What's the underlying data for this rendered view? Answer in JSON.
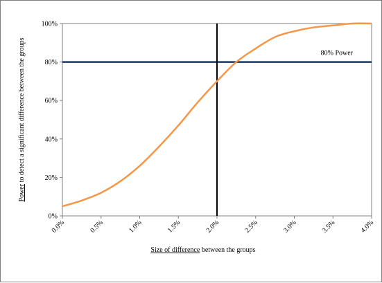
{
  "chart_data": {
    "type": "line",
    "title": "",
    "xlabel_underlined": "Size of difference",
    "xlabel_rest": " between the groups",
    "ylabel_underlined": "Power",
    "ylabel_rest": " to detect a significant difference between the groups",
    "xlim": [
      0,
      4
    ],
    "ylim": [
      0,
      1
    ],
    "x_ticks": [
      "0.0%",
      "0.5%",
      "1.0%",
      "1.5%",
      "2.0%",
      "2.5%",
      "3.0%",
      "3.5%",
      "4.0%"
    ],
    "y_ticks": [
      "0%",
      "20%",
      "40%",
      "60%",
      "80%",
      "100%"
    ],
    "grid": false,
    "series": [
      {
        "color": "#f79646",
        "x": [
          0.0,
          0.25,
          0.5,
          0.75,
          1.0,
          1.25,
          1.5,
          1.75,
          2.0,
          2.25,
          2.5,
          2.75,
          3.0,
          3.25,
          3.5,
          3.75,
          4.0
        ],
        "y": [
          0.05,
          0.08,
          0.12,
          0.18,
          0.26,
          0.36,
          0.47,
          0.59,
          0.7,
          0.8,
          0.87,
          0.93,
          0.96,
          0.98,
          0.99,
          1.0,
          1.0
        ]
      }
    ],
    "reference_lines": {
      "horizontal": {
        "y": 0.8,
        "color": "#17375e",
        "label": "80% Power"
      },
      "vertical": {
        "x": 2.0,
        "color": "#000000"
      }
    }
  }
}
